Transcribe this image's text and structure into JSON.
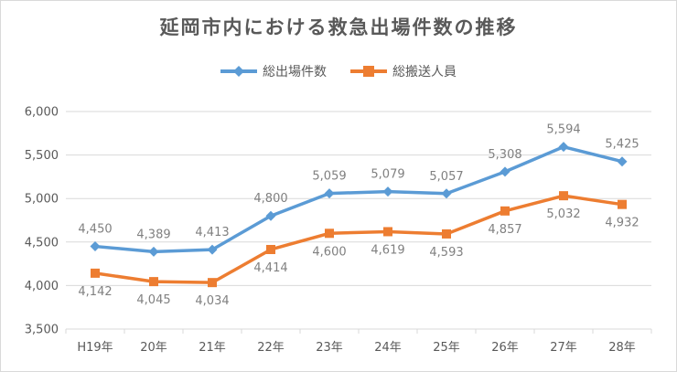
{
  "chart_data": {
    "type": "line",
    "title": "延岡市内における救急出場件数の推移",
    "categories": [
      "H19年",
      "20年",
      "21年",
      "22年",
      "23年",
      "24年",
      "25年",
      "26年",
      "27年",
      "28年"
    ],
    "ylim": [
      3500,
      6000
    ],
    "yticks": [
      "3,500",
      "4,000",
      "4,500",
      "5,000",
      "5,500",
      "6,000"
    ],
    "grid": true,
    "legend_position": "top",
    "series": [
      {
        "name": "総出場件数",
        "color": "#5b9bd5",
        "marker": "diamond",
        "values": [
          4450,
          4389,
          4413,
          4800,
          5059,
          5079,
          5057,
          5308,
          5594,
          5425
        ],
        "labels": [
          "4,450",
          "4,389",
          "4,413",
          "4,800",
          "5,059",
          "5,079",
          "5,057",
          "5,308",
          "5,594",
          "5,425"
        ]
      },
      {
        "name": "総搬送人員",
        "color": "#ed7d31",
        "marker": "square",
        "values": [
          4142,
          4045,
          4034,
          4414,
          4600,
          4619,
          4593,
          4857,
          5032,
          4932
        ],
        "labels": [
          "4,142",
          "4,045",
          "4,034",
          "4,414",
          "4,600",
          "4,619",
          "4,593",
          "4,857",
          "5,032",
          "4,932"
        ]
      }
    ]
  }
}
